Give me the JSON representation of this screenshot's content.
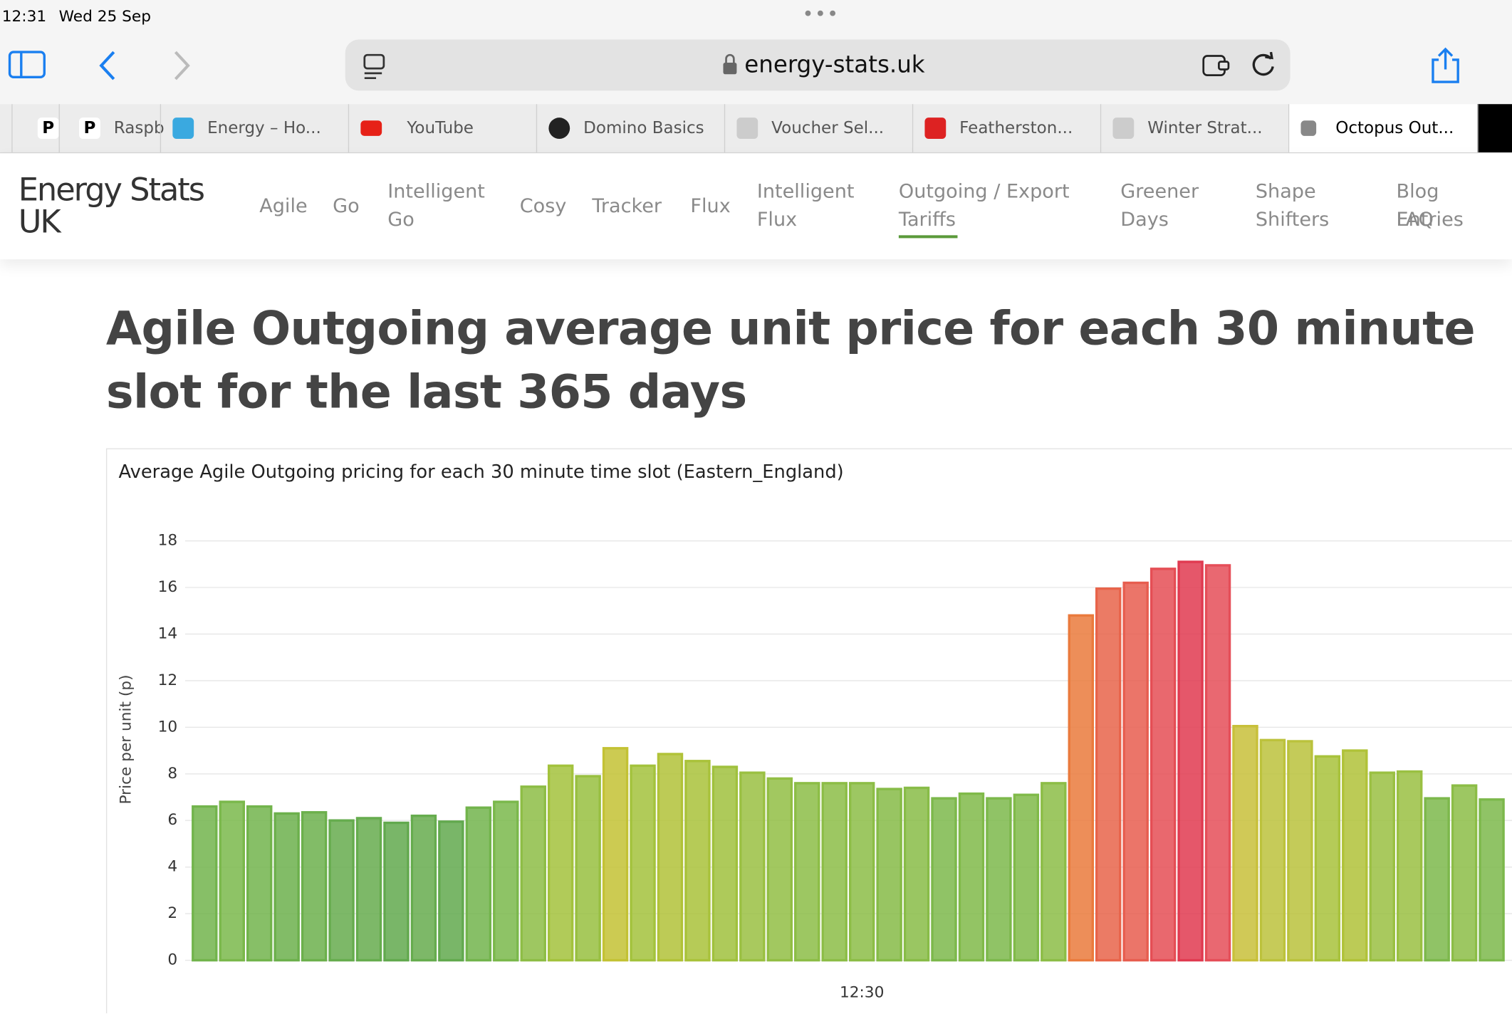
{
  "status": {
    "time": "12:31",
    "date": "Wed 25 Sep"
  },
  "browser": {
    "url": "energy-stats.uk",
    "tabs": [
      "P",
      "Raspb",
      "Energy – Ho...",
      "YouTube",
      "Domino Basics",
      "Voucher Sel...",
      "Featherston...",
      "Winter Strat...",
      "Octopus Out..."
    ]
  },
  "site": {
    "logo": "Energy Stats UK",
    "nav": [
      "Agile",
      "Go",
      "Intelligent Go",
      "Cosy",
      "Tracker",
      "Flux",
      "Intelligent Flux",
      "Outgoing / Export Tariffs",
      "Greener Days",
      "Shape Shifters",
      "Blog Entries",
      "FAQ"
    ]
  },
  "heading": "Agile Outgoing average unit price for each 30 minute slot for the last 365 days",
  "chart_data": {
    "type": "bar",
    "title": "Average Agile Outgoing pricing for each 30 minute time slot (Eastern_England)",
    "y_label": "Price per unit (p)",
    "categories": [
      null,
      null,
      null,
      null,
      null,
      null,
      null,
      null,
      null,
      null,
      null,
      null,
      null,
      null,
      null,
      null,
      null,
      null,
      null,
      null,
      null,
      null,
      null,
      null,
      "12:30",
      null,
      null,
      null,
      null,
      null,
      null,
      null,
      null,
      null,
      null,
      null,
      null,
      null,
      null,
      null,
      null,
      null,
      null,
      null,
      null,
      null,
      null,
      null
    ],
    "values": [
      6.6,
      6.8,
      6.6,
      6.3,
      6.35,
      6.0,
      6.1,
      5.9,
      6.2,
      5.95,
      6.55,
      6.8,
      7.45,
      8.35,
      7.9,
      9.1,
      8.35,
      8.85,
      8.55,
      8.3,
      8.05,
      7.8,
      7.6,
      7.6,
      7.6,
      7.35,
      7.4,
      6.95,
      7.15,
      6.95,
      7.1,
      7.6,
      14.8,
      15.95,
      16.2,
      16.8,
      17.1,
      16.95,
      10.05,
      9.45,
      9.4,
      8.75,
      9.0,
      8.05,
      8.1,
      6.95,
      7.5,
      6.9
    ],
    "colors": [
      "#72b44c",
      "#7ab84b",
      "#72b44c",
      "#6cb04c",
      "#6cb04c",
      "#66ac4e",
      "#66ac4e",
      "#62a94e",
      "#66ac4e",
      "#62a94e",
      "#72b44c",
      "#7ab84b",
      "#8dbd45",
      "#a3c23c",
      "#98bf40",
      "#c3c234",
      "#a3c23c",
      "#b1c238",
      "#a9c23a",
      "#a0c13d",
      "#9ac042",
      "#92be44",
      "#8cbd46",
      "#8cbd46",
      "#8cbd46",
      "#86bb47",
      "#88bc47",
      "#7cb84b",
      "#80ba49",
      "#7cb84b",
      "#80ba49",
      "#8cbd46",
      "#ea7a3c",
      "#e8644a",
      "#e75d4f",
      "#e54e55",
      "#e03a50",
      "#e54e58",
      "#c8c03a",
      "#bcc23c",
      "#bac23c",
      "#a8c23b",
      "#b0c238",
      "#9ac042",
      "#9ac042",
      "#7cb84b",
      "#8cbd46",
      "#7cb84b"
    ],
    "ylim": [
      0,
      18
    ],
    "yticks": [
      0,
      2,
      4,
      6,
      8,
      10,
      12,
      14,
      16,
      18
    ],
    "grid": true
  }
}
